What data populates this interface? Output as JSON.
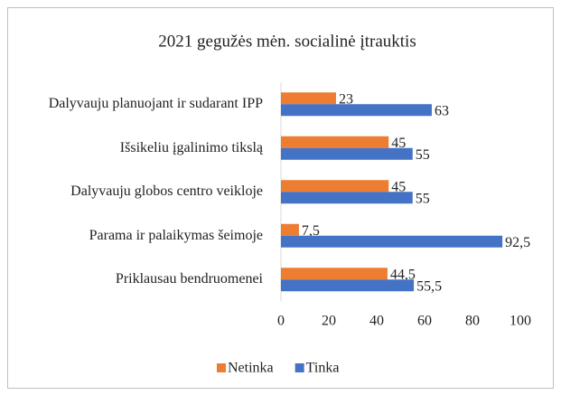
{
  "chart_data": {
    "type": "bar",
    "orientation": "horizontal",
    "title": "2021 gegužės mėn. socialinė įtrauktis",
    "categories": [
      "Dalyvauju planuojant ir sudarant IPP",
      "Išsikeliu įgalinimo tikslą",
      "Dalyvauju globos centro veikloje",
      "Parama ir palaikymas šeimoje",
      "Priklausau bendruomenei"
    ],
    "series": [
      {
        "name": "Netinka",
        "color": "#ed7d31",
        "values": [
          23,
          45,
          45,
          7.5,
          44.5
        ],
        "value_labels": [
          "23",
          "45",
          "45",
          "7,5",
          "44,5"
        ]
      },
      {
        "name": "Tinka",
        "color": "#4472c4",
        "values": [
          63,
          55,
          55,
          92.5,
          55.5
        ],
        "value_labels": [
          "63",
          "55",
          "55",
          "92,5",
          "55,5"
        ]
      }
    ],
    "xlim": [
      0,
      100
    ],
    "xticks": [
      0,
      20,
      40,
      60,
      80,
      100
    ],
    "grid": false,
    "legend": "bottom"
  }
}
